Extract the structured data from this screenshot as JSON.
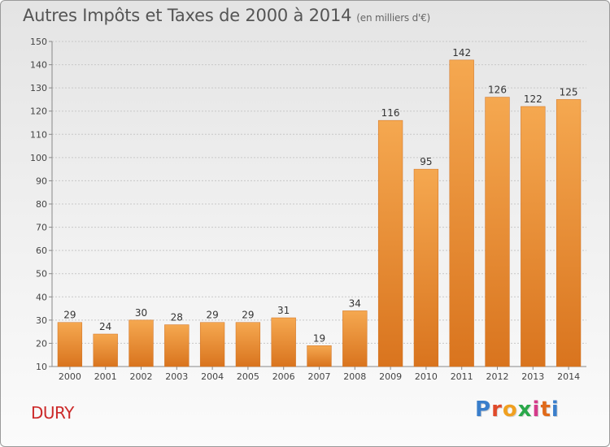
{
  "page": {
    "title": "Autres Impôts et Taxes de 2000 à 2014",
    "subtitle": "(en milliers d'€)",
    "town": "DURY",
    "logo": {
      "text": "Proxiti",
      "colors": [
        "#3a7ecb",
        "#e04a2a",
        "#f0a020",
        "#2aa84a",
        "#d43a8a",
        "#e06a1a",
        "#3a7ecb"
      ]
    }
  },
  "chart_data": {
    "type": "bar",
    "categories": [
      "2000",
      "2001",
      "2002",
      "2003",
      "2004",
      "2005",
      "2006",
      "2007",
      "2008",
      "2009",
      "2010",
      "2011",
      "2012",
      "2013",
      "2014"
    ],
    "values": [
      29,
      24,
      30,
      28,
      29,
      29,
      31,
      19,
      34,
      116,
      95,
      142,
      126,
      122,
      125
    ],
    "title": "Autres Impôts et Taxes de 2000 à 2014",
    "subtitle": "(en milliers d'€)",
    "xlabel": "",
    "ylabel": "",
    "ylim": [
      10,
      150
    ],
    "yticks": [
      10,
      20,
      30,
      40,
      50,
      60,
      70,
      80,
      90,
      100,
      110,
      120,
      130,
      140,
      150
    ],
    "grid": true,
    "bar_color": "#f0993f",
    "bar_color_dark": "#d9741e"
  }
}
